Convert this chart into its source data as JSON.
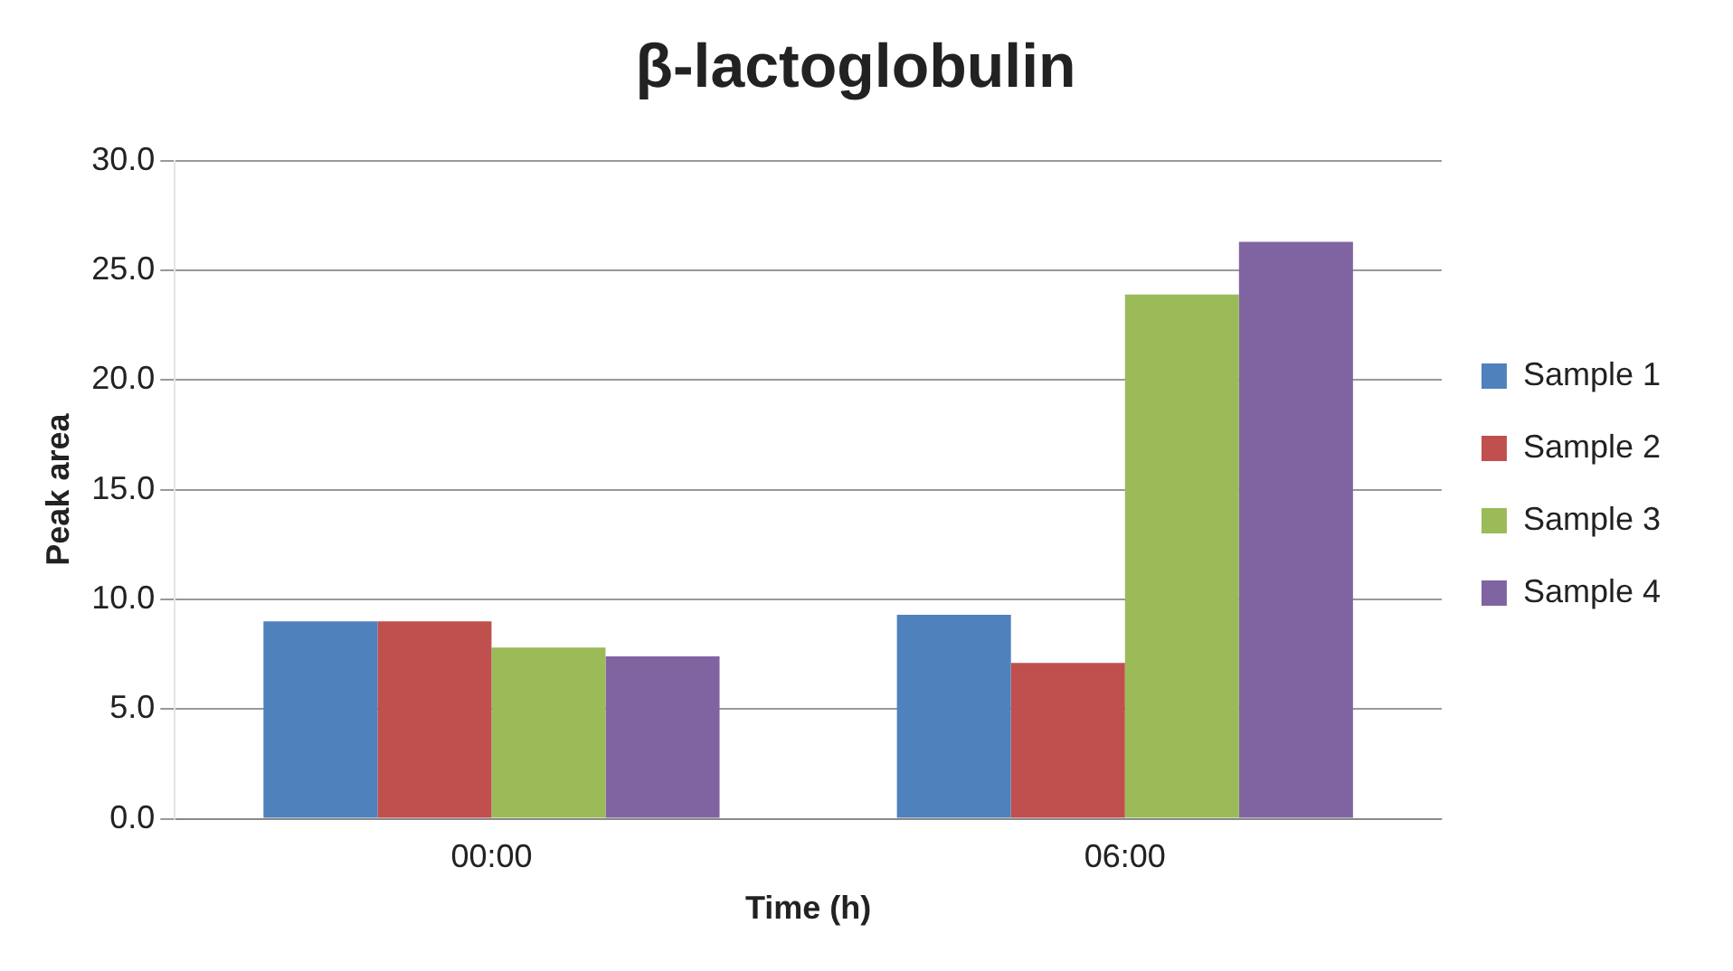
{
  "chart_data": {
    "type": "bar",
    "title": "β-lactoglobulin",
    "xlabel": "Time (h)",
    "ylabel": "Peak area",
    "categories": [
      "00:00",
      "06:00"
    ],
    "series": [
      {
        "name": "Sample 1",
        "color": "#4f81bd",
        "values": [
          9.0,
          9.3
        ]
      },
      {
        "name": "Sample 2",
        "color": "#c0504d",
        "values": [
          9.0,
          7.1
        ]
      },
      {
        "name": "Sample 3",
        "color": "#9bbb59",
        "values": [
          7.8,
          23.9
        ]
      },
      {
        "name": "Sample 4",
        "color": "#8064a2",
        "values": [
          7.4,
          26.3
        ]
      }
    ],
    "ylim": [
      0,
      30
    ],
    "yticks": [
      {
        "value": 0,
        "label": "0.0"
      },
      {
        "value": 5,
        "label": "5.0"
      },
      {
        "value": 10,
        "label": "10.0"
      },
      {
        "value": 15,
        "label": "15.0"
      },
      {
        "value": 20,
        "label": "20.0"
      },
      {
        "value": 25,
        "label": "25.0"
      },
      {
        "value": 30,
        "label": "30.0"
      }
    ],
    "grid": "y",
    "legend": "right"
  }
}
